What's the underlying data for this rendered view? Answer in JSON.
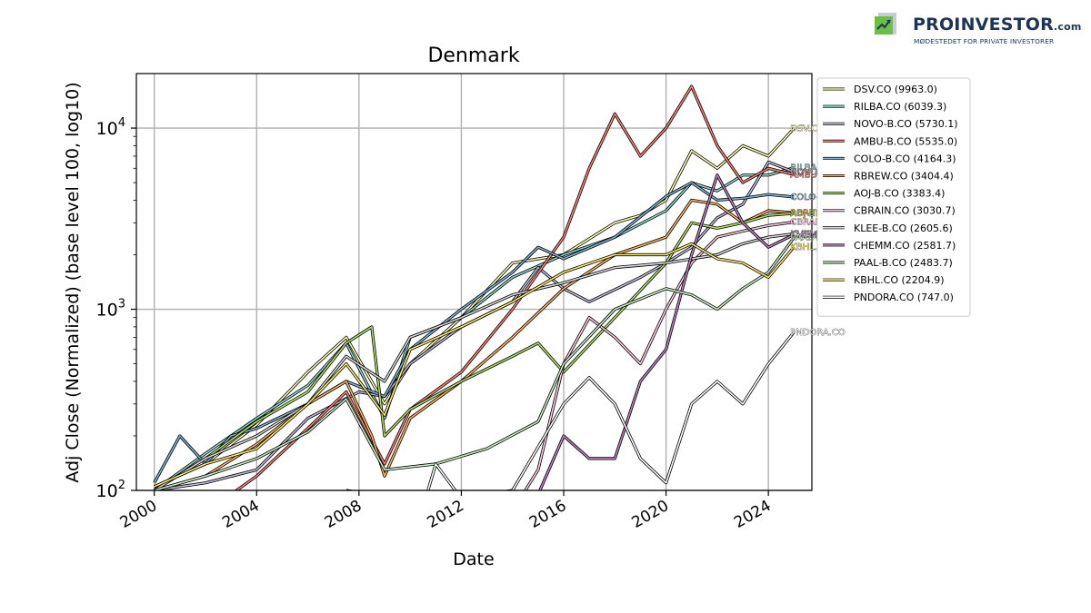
{
  "branding": {
    "name": "PROINVESTOR",
    "suffix": ".com",
    "tagline": "MØDESTEDET FOR PRIVATE INVESTORER",
    "colors": {
      "text": "#1c3556",
      "accent": "#6abf45"
    }
  },
  "chart_data": {
    "type": "line",
    "title": "Denmark",
    "xlabel": "Date",
    "ylabel": "Adj Close (Normalized) (base level 100, log10)",
    "yscale": "log10",
    "xlim": [
      1999.3,
      2025.7
    ],
    "ylim": [
      100,
      20000
    ],
    "x_ticks": [
      2000,
      2004,
      2008,
      2012,
      2016,
      2020,
      2024
    ],
    "x_tick_labels": [
      "2000",
      "2004",
      "2008",
      "2012",
      "2016",
      "2020",
      "2024"
    ],
    "y_ticks": [
      100,
      1000,
      10000
    ],
    "y_tick_labels": [
      "10",
      "10",
      "10"
    ],
    "y_tick_exponents": [
      "2",
      "3",
      "4"
    ],
    "grid": true,
    "legend_position": "upper-right-outside",
    "series": [
      {
        "name": "DSV.CO (9963.0)",
        "label": "DSV.CO",
        "color": "#ffffb3",
        "points": [
          [
            2000,
            105
          ],
          [
            2002,
            140
          ],
          [
            2004,
            230
          ],
          [
            2006,
            450
          ],
          [
            2007.5,
            700
          ],
          [
            2009,
            300
          ],
          [
            2010,
            500
          ],
          [
            2012,
            900
          ],
          [
            2014,
            1800
          ],
          [
            2016,
            2000
          ],
          [
            2018,
            3000
          ],
          [
            2019,
            3300
          ],
          [
            2020,
            4000
          ],
          [
            2021,
            7500
          ],
          [
            2022,
            6000
          ],
          [
            2023,
            8000
          ],
          [
            2024,
            7000
          ],
          [
            2025,
            9963
          ]
        ]
      },
      {
        "name": "RILBA.CO (6039.3)",
        "label": "RILBA.CO",
        "color": "#8dd3c7",
        "points": [
          [
            2000,
            100
          ],
          [
            2002,
            160
          ],
          [
            2004,
            250
          ],
          [
            2006,
            380
          ],
          [
            2007.5,
            650
          ],
          [
            2009,
            250
          ],
          [
            2010,
            700
          ],
          [
            2012,
            900
          ],
          [
            2014,
            1500
          ],
          [
            2016,
            2000
          ],
          [
            2018,
            2500
          ],
          [
            2020,
            3500
          ],
          [
            2021,
            5000
          ],
          [
            2022,
            4500
          ],
          [
            2023,
            5500
          ],
          [
            2024,
            5500
          ],
          [
            2025,
            6039
          ]
        ]
      },
      {
        "name": "NOVO-B.CO (5730.1)",
        "label": "NOVO-B.CO",
        "color": "#bebada",
        "points": [
          [
            2000,
            100
          ],
          [
            2002,
            110
          ],
          [
            2004,
            130
          ],
          [
            2006,
            250
          ],
          [
            2008,
            350
          ],
          [
            2009,
            330
          ],
          [
            2010,
            500
          ],
          [
            2012,
            800
          ],
          [
            2014,
            1100
          ],
          [
            2015,
            1700
          ],
          [
            2016,
            1300
          ],
          [
            2017,
            1100
          ],
          [
            2019,
            1500
          ],
          [
            2020,
            1800
          ],
          [
            2021,
            2200
          ],
          [
            2022,
            3200
          ],
          [
            2023,
            3800
          ],
          [
            2024,
            6500
          ],
          [
            2025,
            5730
          ]
        ]
      },
      {
        "name": "AMBU-B.CO (5535.0)",
        "label": "AMBU-B.CO",
        "color": "#fb8072",
        "points": [
          [
            2000,
            100
          ],
          [
            2003,
            95
          ],
          [
            2004,
            120
          ],
          [
            2006,
            220
          ],
          [
            2007.5,
            350
          ],
          [
            2009,
            140
          ],
          [
            2010,
            280
          ],
          [
            2012,
            450
          ],
          [
            2014,
            1000
          ],
          [
            2016,
            2500
          ],
          [
            2017,
            6000
          ],
          [
            2018,
            12000
          ],
          [
            2019,
            7000
          ],
          [
            2020,
            10000
          ],
          [
            2021,
            17000
          ],
          [
            2022,
            8000
          ],
          [
            2023,
            5000
          ],
          [
            2024,
            6000
          ],
          [
            2025,
            5535
          ]
        ]
      },
      {
        "name": "COLO-B.CO (4164.3)",
        "label": "COLO-B.CO",
        "color": "#80b1d3",
        "points": [
          [
            2000,
            110
          ],
          [
            2001,
            200
          ],
          [
            2002,
            140
          ],
          [
            2003,
            200
          ],
          [
            2004,
            220
          ],
          [
            2006,
            300
          ],
          [
            2007.5,
            400
          ],
          [
            2009,
            330
          ],
          [
            2010,
            600
          ],
          [
            2012,
            1000
          ],
          [
            2014,
            1600
          ],
          [
            2015,
            2200
          ],
          [
            2016,
            1900
          ],
          [
            2018,
            2500
          ],
          [
            2020,
            4200
          ],
          [
            2021,
            5000
          ],
          [
            2022,
            4000
          ],
          [
            2023,
            4100
          ],
          [
            2024,
            4300
          ],
          [
            2025,
            4164
          ]
        ]
      },
      {
        "name": "RBREW.CO (3404.4)",
        "label": "RBREW.CO",
        "color": "#fdb462",
        "points": [
          [
            2000,
            100
          ],
          [
            2002,
            120
          ],
          [
            2004,
            180
          ],
          [
            2006,
            300
          ],
          [
            2007.5,
            400
          ],
          [
            2008.5,
            200
          ],
          [
            2009,
            120
          ],
          [
            2010,
            250
          ],
          [
            2012,
            400
          ],
          [
            2014,
            700
          ],
          [
            2016,
            1300
          ],
          [
            2018,
            2000
          ],
          [
            2020,
            2500
          ],
          [
            2021,
            4000
          ],
          [
            2022,
            3800
          ],
          [
            2023,
            3000
          ],
          [
            2024,
            3500
          ],
          [
            2025,
            3404
          ]
        ]
      },
      {
        "name": "AOJ-B.CO (3383.4)",
        "label": "AOJ-B.CO",
        "color": "#b3de69",
        "points": [
          [
            2000,
            100
          ],
          [
            2002,
            150
          ],
          [
            2004,
            240
          ],
          [
            2006,
            350
          ],
          [
            2007.5,
            650
          ],
          [
            2008.5,
            800
          ],
          [
            2009,
            200
          ],
          [
            2010,
            280
          ],
          [
            2012,
            400
          ],
          [
            2014,
            550
          ],
          [
            2015,
            650
          ],
          [
            2016,
            450
          ],
          [
            2018,
            900
          ],
          [
            2020,
            1800
          ],
          [
            2021,
            3000
          ],
          [
            2022,
            2800
          ],
          [
            2023,
            3000
          ],
          [
            2024,
            3300
          ],
          [
            2025,
            3383
          ]
        ]
      },
      {
        "name": "CBRAIN.CO (3030.7)",
        "label": "CBRAIN.CO",
        "color": "#fccde5",
        "points": [
          [
            2014.5,
            100
          ],
          [
            2015,
            130
          ],
          [
            2016,
            500
          ],
          [
            2017,
            900
          ],
          [
            2018,
            700
          ],
          [
            2019,
            500
          ],
          [
            2020,
            1000
          ],
          [
            2021,
            1800
          ],
          [
            2022,
            2500
          ],
          [
            2023,
            2700
          ],
          [
            2024,
            2900
          ],
          [
            2025,
            3031
          ]
        ]
      },
      {
        "name": "KLEE-B.CO (2605.6)",
        "label": "KLEE-B.CO",
        "color": "#d9d9d9",
        "points": [
          [
            2000,
            100
          ],
          [
            2002,
            150
          ],
          [
            2004,
            200
          ],
          [
            2006,
            300
          ],
          [
            2007.5,
            550
          ],
          [
            2009,
            400
          ],
          [
            2010,
            700
          ],
          [
            2012,
            900
          ],
          [
            2014,
            1200
          ],
          [
            2016,
            1400
          ],
          [
            2018,
            1700
          ],
          [
            2020,
            1800
          ],
          [
            2022,
            2000
          ],
          [
            2023,
            2300
          ],
          [
            2024,
            2500
          ],
          [
            2025,
            2606
          ]
        ]
      },
      {
        "name": "CHEMM.CO (2581.7)",
        "label": "CHEMM.CO",
        "color": "#bc80bd",
        "points": [
          [
            2007.5,
            100
          ],
          [
            2008.5,
            95
          ],
          [
            2010,
            90
          ],
          [
            2015,
            95
          ],
          [
            2016,
            200
          ],
          [
            2017,
            150
          ],
          [
            2018,
            150
          ],
          [
            2019,
            400
          ],
          [
            2020,
            600
          ],
          [
            2021,
            2000
          ],
          [
            2022,
            5500
          ],
          [
            2023,
            3000
          ],
          [
            2024,
            2200
          ],
          [
            2025,
            2582
          ]
        ]
      },
      {
        "name": "PAAL-B.CO (2483.7)",
        "label": "PAAL-B.CO",
        "color": "#ccebc5",
        "points": [
          [
            2000,
            100
          ],
          [
            2002,
            120
          ],
          [
            2004,
            150
          ],
          [
            2006,
            210
          ],
          [
            2007.5,
            320
          ],
          [
            2009,
            130
          ],
          [
            2011,
            140
          ],
          [
            2013,
            170
          ],
          [
            2015,
            240
          ],
          [
            2016,
            500
          ],
          [
            2018,
            1000
          ],
          [
            2020,
            1300
          ],
          [
            2021,
            1200
          ],
          [
            2022,
            1000
          ],
          [
            2023,
            1300
          ],
          [
            2024,
            1600
          ],
          [
            2025,
            2484
          ]
        ]
      },
      {
        "name": "KBHL.CO (2204.9)",
        "label": "KBHL.CO",
        "color": "#ffed6f",
        "points": [
          [
            2000,
            105
          ],
          [
            2002,
            140
          ],
          [
            2004,
            170
          ],
          [
            2006,
            300
          ],
          [
            2007.5,
            500
          ],
          [
            2009,
            260
          ],
          [
            2010,
            600
          ],
          [
            2012,
            800
          ],
          [
            2014,
            1100
          ],
          [
            2016,
            1600
          ],
          [
            2018,
            2000
          ],
          [
            2020,
            2000
          ],
          [
            2021,
            2300
          ],
          [
            2022,
            1900
          ],
          [
            2023,
            1800
          ],
          [
            2024,
            1500
          ],
          [
            2025,
            2205
          ]
        ]
      },
      {
        "name": "PNDORA.CO (747.0)",
        "label": "PNDORA.CO",
        "color": "#ffffff",
        "points": [
          [
            2010.7,
            100
          ],
          [
            2011,
            140
          ],
          [
            2012,
            90
          ],
          [
            2014,
            100
          ],
          [
            2016,
            300
          ],
          [
            2017,
            420
          ],
          [
            2018,
            300
          ],
          [
            2019,
            150
          ],
          [
            2020,
            110
          ],
          [
            2021,
            300
          ],
          [
            2022,
            400
          ],
          [
            2023,
            300
          ],
          [
            2024,
            500
          ],
          [
            2025,
            747
          ]
        ]
      }
    ]
  }
}
